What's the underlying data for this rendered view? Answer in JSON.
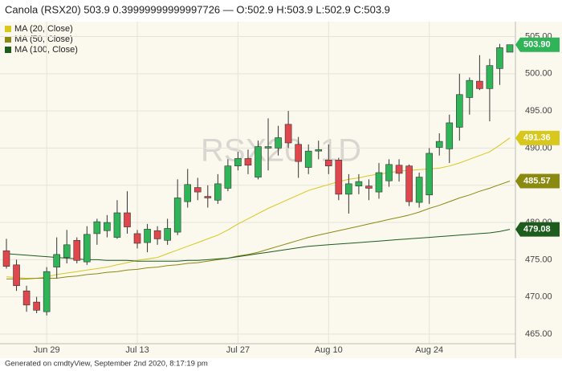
{
  "chart_data": {
    "type": "candlestick",
    "title": "Canola (RSX20) 503.9 0.39999999999997726 — O:502.9 H:503.9 L:502.9 C:503.9",
    "watermark": "RSX20, 1D",
    "footer": "Generated on cmdtyView, September 2nd 2020, 8:17:19 pm",
    "categories": [
      null,
      null,
      null,
      null,
      "Jun 29",
      null,
      null,
      null,
      null,
      null,
      null,
      null,
      null,
      "Jul 13",
      null,
      null,
      null,
      null,
      null,
      null,
      null,
      null,
      null,
      "Jul 27",
      null,
      null,
      null,
      null,
      null,
      null,
      null,
      null,
      "Aug 10",
      null,
      null,
      null,
      null,
      null,
      null,
      null,
      null,
      null,
      "Aug 24",
      null,
      null,
      null,
      null,
      null,
      null,
      null,
      null
    ],
    "open": [
      476.2,
      474.3,
      470.8,
      469.3,
      468.0,
      474.0,
      475.3,
      477.6,
      474.7,
      478.5,
      478.9,
      478.0,
      481.3,
      478.5,
      477.3,
      478.9,
      477.6,
      478.7,
      482.8,
      484.7,
      483.5,
      483.0,
      484.6,
      487.6,
      488.6,
      486.1,
      490.0,
      490.0,
      493.2,
      490.5,
      487.4,
      489.6,
      488.4,
      488.4,
      483.8,
      484.9,
      484.9,
      484.1,
      485.6,
      487.7,
      487.6,
      482.7,
      483.7,
      490.1,
      489.9,
      492.8,
      496.8,
      499.0,
      498.0,
      500.7,
      502.9
    ],
    "high": [
      477.8,
      475.0,
      471.5,
      470.0,
      474.0,
      478.0,
      479.0,
      478.0,
      479.5,
      480.5,
      481.0,
      483.0,
      484.2,
      479.0,
      479.8,
      479.5,
      480.5,
      485.8,
      487.2,
      486.0,
      485.0,
      486.5,
      488.5,
      489.5,
      489.8,
      491.0,
      494.0,
      493.0,
      495.0,
      491.5,
      490.5,
      491.0,
      490.5,
      488.7,
      486.5,
      486.5,
      485.8,
      488.0,
      488.5,
      488.5,
      487.8,
      486.7,
      490.0,
      492.0,
      494.5,
      500.0,
      499.5,
      502.5,
      502.0,
      504.0,
      503.9
    ],
    "low": [
      473.8,
      470.8,
      468.0,
      467.8,
      467.5,
      472.5,
      474.5,
      474.5,
      474.3,
      477.0,
      478.0,
      477.8,
      478.5,
      476.5,
      476.0,
      477.0,
      477.0,
      478.3,
      482.0,
      483.0,
      482.0,
      482.5,
      484.2,
      487.0,
      486.5,
      485.8,
      487.0,
      489.0,
      490.0,
      486.0,
      486.5,
      488.5,
      486.5,
      483.0,
      481.2,
      483.8,
      483.0,
      483.2,
      484.8,
      485.5,
      482.2,
      482.0,
      482.5,
      489.0,
      488.0,
      491.0,
      494.5,
      497.8,
      493.6,
      498.5,
      502.9
    ],
    "close": [
      474.1,
      471.5,
      468.9,
      468.2,
      473.4,
      475.7,
      477.0,
      474.9,
      478.4,
      480.1,
      480.0,
      481.3,
      479.4,
      477.2,
      479.1,
      477.8,
      479.2,
      483.3,
      485.1,
      484.1,
      483.3,
      485.2,
      487.6,
      488.6,
      487.7,
      490.2,
      490.2,
      491.4,
      490.7,
      488.2,
      489.6,
      489.8,
      487.6,
      483.8,
      485.2,
      485.5,
      484.6,
      486.7,
      487.8,
      486.6,
      482.8,
      486.1,
      489.3,
      490.9,
      493.4,
      497.2,
      499.1,
      498.0,
      501.1,
      503.5,
      503.9
    ],
    "up_color": "#2fb457",
    "down_color": "#e0474c",
    "series": [
      {
        "name": "MA (20, Close)",
        "color": "#d8c81e",
        "values": [
          472.7,
          472.6,
          472.5,
          472.5,
          472.7,
          473.0,
          473.2,
          473.4,
          473.6,
          473.8,
          474.0,
          474.3,
          474.6,
          474.9,
          475.1,
          475.3,
          475.8,
          476.3,
          476.8,
          477.3,
          477.8,
          478.3,
          479.0,
          479.8,
          480.5,
          481.2,
          481.9,
          482.5,
          483.1,
          483.7,
          484.3,
          484.7,
          485.1,
          485.5,
          485.8,
          486.0,
          486.3,
          486.5,
          486.7,
          486.9,
          487.0,
          487.1,
          487.2,
          487.3,
          487.6,
          488.0,
          488.5,
          489.0,
          489.5,
          490.4,
          491.36
        ]
      },
      {
        "name": "MA (50, Close)",
        "color": "#8b8a10",
        "values": [
          472.4,
          472.4,
          472.4,
          472.5,
          472.5,
          472.5,
          472.7,
          472.8,
          473.0,
          473.1,
          473.3,
          473.4,
          473.6,
          473.7,
          473.9,
          474.0,
          474.2,
          474.3,
          474.5,
          474.6,
          474.8,
          475.0,
          475.2,
          475.5,
          475.7,
          476.0,
          476.4,
          476.8,
          477.2,
          477.6,
          478.0,
          478.3,
          478.6,
          478.9,
          479.2,
          479.5,
          479.8,
          480.1,
          480.4,
          480.7,
          481.0,
          481.4,
          481.9,
          482.3,
          482.8,
          483.3,
          483.7,
          484.2,
          484.6,
          485.1,
          485.57
        ]
      },
      {
        "name": "MA (100, Close)",
        "color": "#1d5c1d",
        "values": [
          475.8,
          475.7,
          475.6,
          475.5,
          475.4,
          475.3,
          475.2,
          475.1,
          475.0,
          475.0,
          474.9,
          474.9,
          474.9,
          474.8,
          474.8,
          474.8,
          474.8,
          474.8,
          474.9,
          474.9,
          475.0,
          475.1,
          475.2,
          475.4,
          475.6,
          475.8,
          476.0,
          476.2,
          476.4,
          476.6,
          476.8,
          476.9,
          477.0,
          477.1,
          477.2,
          477.3,
          477.4,
          477.5,
          477.6,
          477.7,
          477.8,
          477.9,
          478.0,
          478.1,
          478.2,
          478.3,
          478.4,
          478.5,
          478.6,
          478.8,
          479.08
        ]
      }
    ],
    "price_tags": [
      {
        "value": 503.9,
        "label": "503.90",
        "color": "#2fb457"
      },
      {
        "value": 491.36,
        "label": "491.36",
        "color": "#d8c81e"
      },
      {
        "value": 485.57,
        "label": "485.57",
        "color": "#8b8a10"
      },
      {
        "value": 479.08,
        "label": "479.08",
        "color": "#1d5c1d"
      }
    ],
    "ylim": [
      463.7,
      507
    ],
    "yticks": [
      {
        "value": 465,
        "label": "465.00"
      },
      {
        "value": 470,
        "label": "470.00"
      },
      {
        "value": 475,
        "label": "475.00"
      },
      {
        "value": 480,
        "label": "480.00"
      },
      {
        "value": 485,
        "label": "485.00"
      },
      {
        "value": 490,
        "label": "490.00"
      },
      {
        "value": 495,
        "label": "495.00"
      },
      {
        "value": 500,
        "label": "500.00"
      },
      {
        "value": 505,
        "label": "505.00"
      }
    ],
    "grid": true
  }
}
